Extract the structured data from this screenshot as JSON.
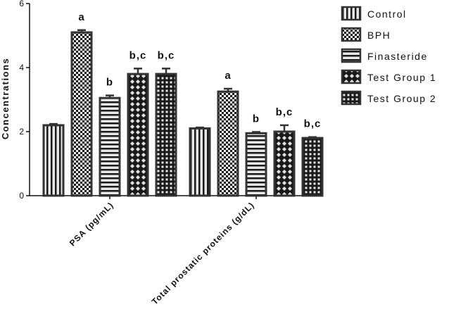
{
  "chart_data": {
    "type": "bar",
    "title": "",
    "xlabel": "",
    "ylabel": "Concentrations",
    "ylim": [
      0,
      6
    ],
    "yticks": [
      0,
      2,
      4,
      6
    ],
    "grid": false,
    "legend_position": "top-right",
    "categories": [
      "PSA (pg/mL)",
      "Total prostatic proteins (g/dL)"
    ],
    "series": [
      {
        "name": "Control",
        "pattern": "vertical-stripes",
        "values": [
          2.2,
          2.1
        ],
        "errors": [
          0.04,
          0.03
        ],
        "labels": [
          "",
          ""
        ]
      },
      {
        "name": "BPH",
        "pattern": "checker",
        "values": [
          5.1,
          3.25
        ],
        "errors": [
          0.07,
          0.09
        ],
        "labels": [
          "a",
          "a"
        ]
      },
      {
        "name": "Finasteride",
        "pattern": "horizontal-stripes",
        "values": [
          3.05,
          1.95
        ],
        "errors": [
          0.08,
          0.04
        ],
        "labels": [
          "b",
          "b"
        ]
      },
      {
        "name": "Test Group 1",
        "pattern": "diamond-crosshatch",
        "values": [
          3.8,
          2.0
        ],
        "errors": [
          0.17,
          0.2
        ],
        "labels": [
          "b,c",
          "b,c"
        ]
      },
      {
        "name": "Test Group 2",
        "pattern": "grid",
        "values": [
          3.8,
          1.8
        ],
        "errors": [
          0.17,
          0.03
        ],
        "labels": [
          "b,c",
          "b,c"
        ]
      }
    ]
  }
}
